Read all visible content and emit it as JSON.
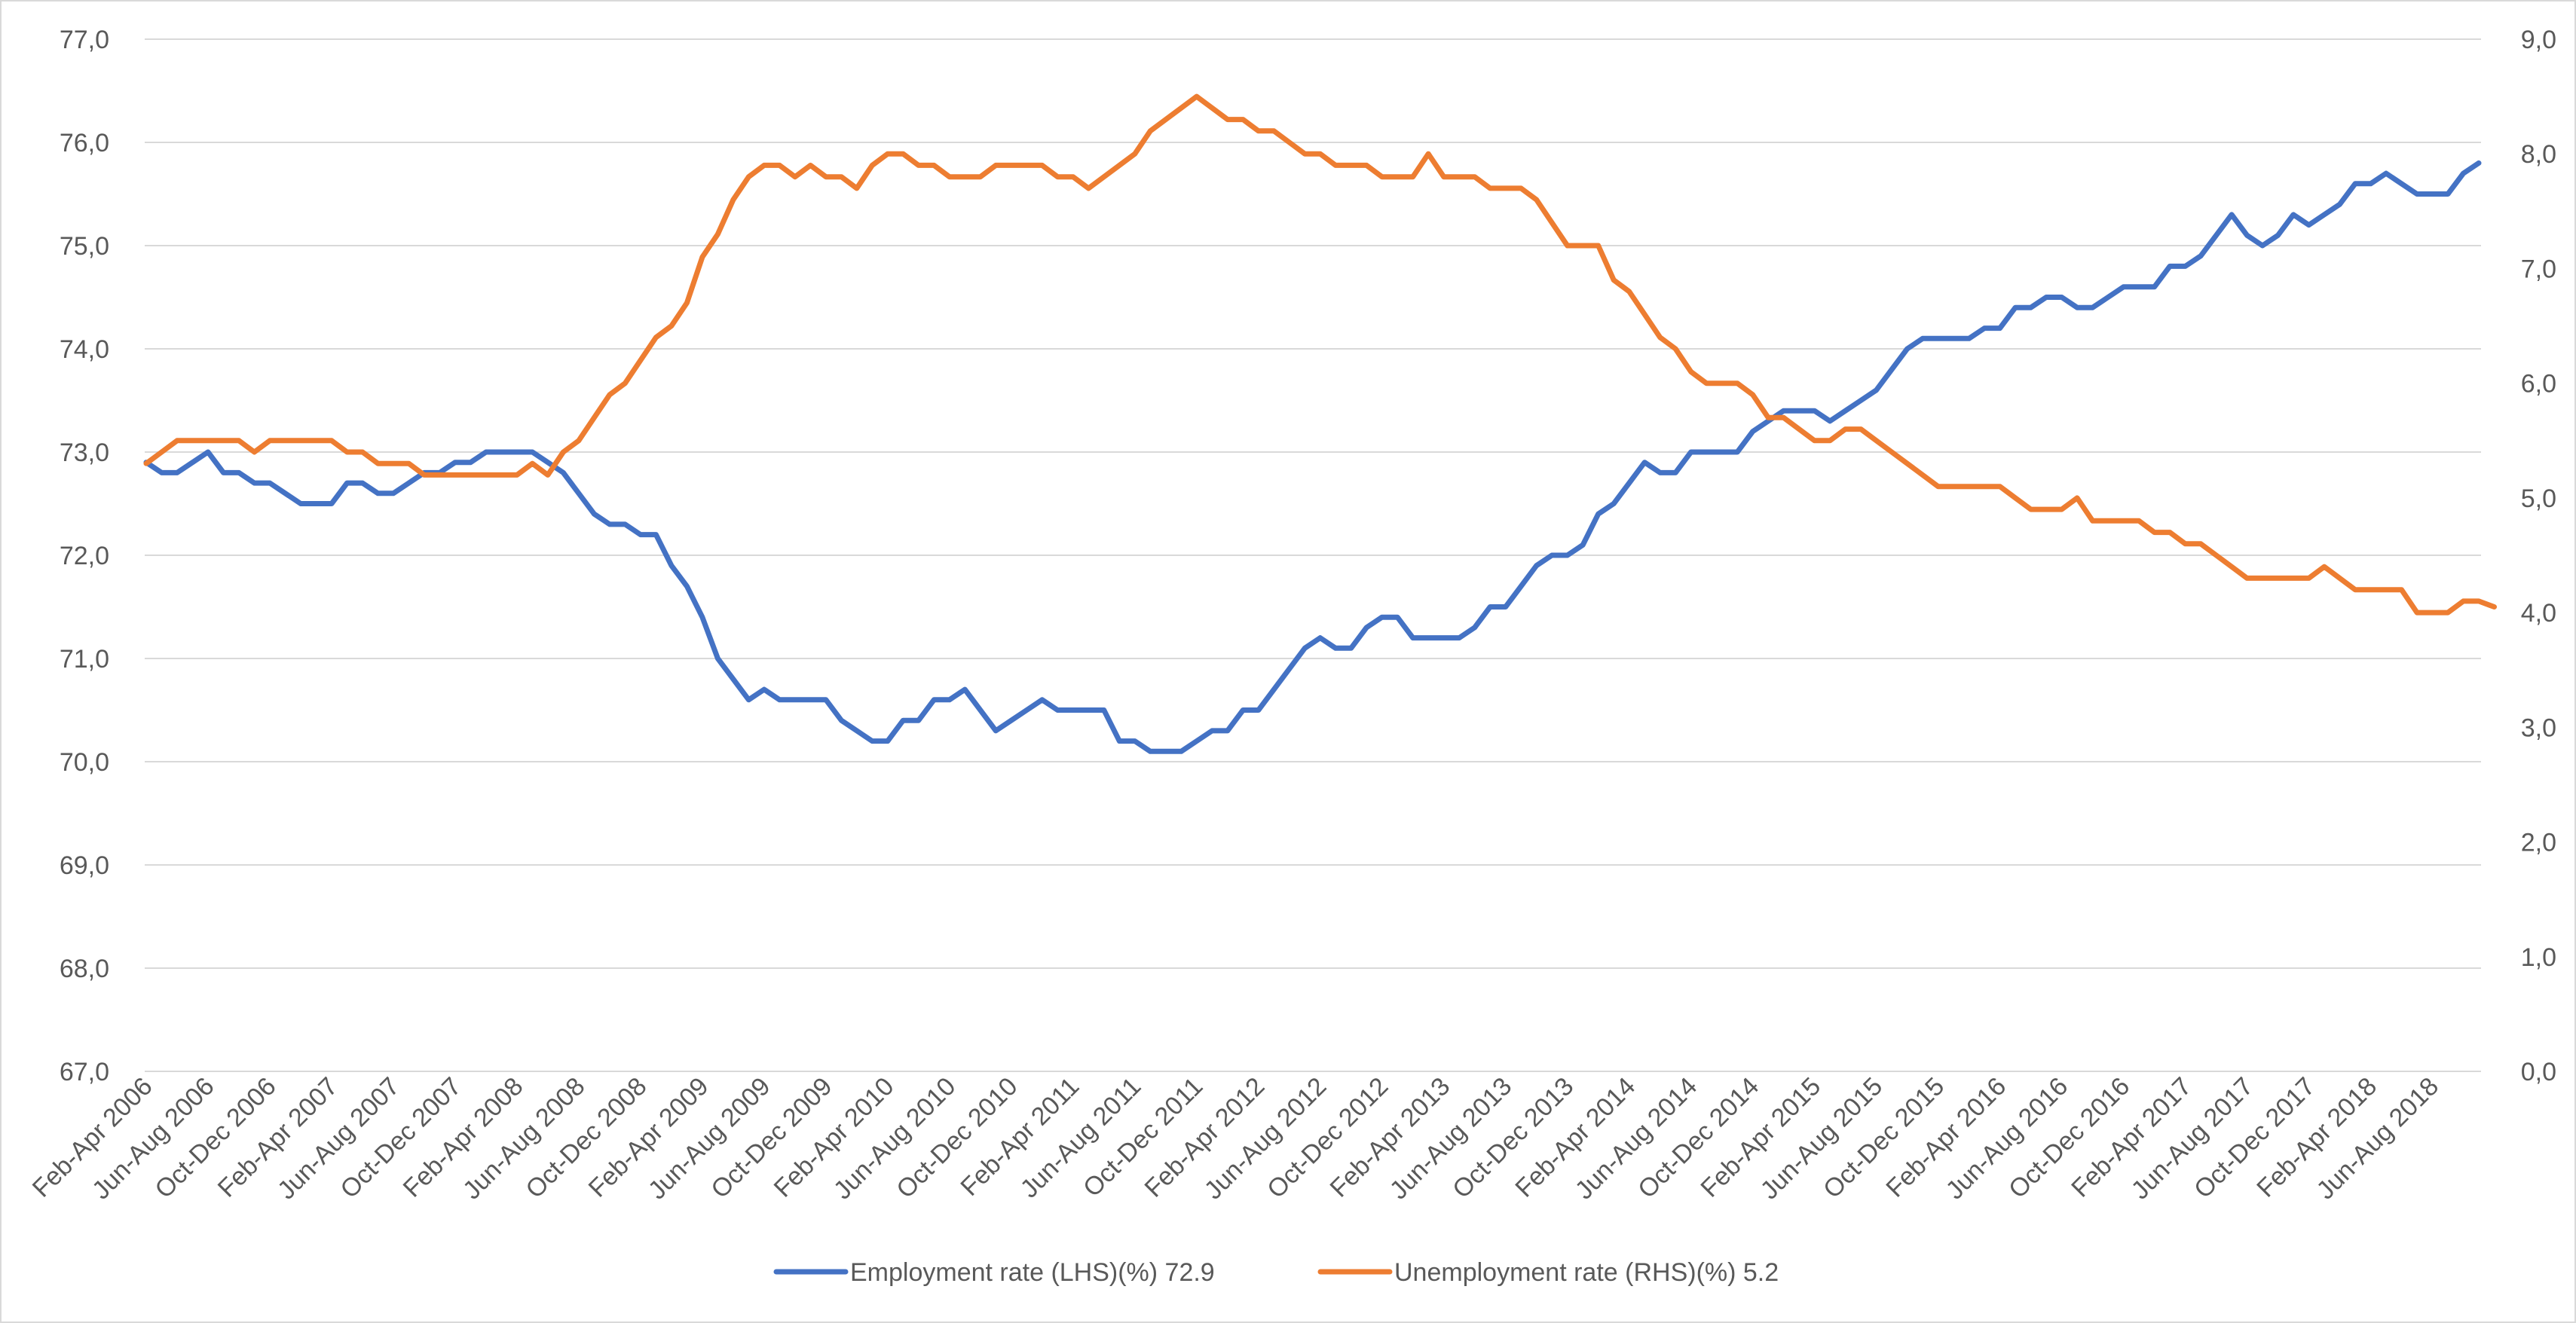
{
  "chart_data": {
    "type": "line",
    "title": "",
    "xlabel": "",
    "ylabel": "",
    "y_left": {
      "min": 67,
      "max": 77,
      "step": 1,
      "tick_labels": [
        "67,0",
        "68,0",
        "69,0",
        "70,0",
        "71,0",
        "72,0",
        "73,0",
        "74,0",
        "75,0",
        "76,0",
        "77,0"
      ]
    },
    "y_right": {
      "min": 0,
      "max": 9,
      "step": 1,
      "tick_labels": [
        "0,0",
        "1,0",
        "2,0",
        "3,0",
        "4,0",
        "5,0",
        "6,0",
        "7,0",
        "8,0",
        "9,0"
      ]
    },
    "x_tick_labels": [
      "Feb-Apr 2006",
      "Jun-Aug 2006",
      "Oct-Dec 2006",
      "Feb-Apr 2007",
      "Jun-Aug 2007",
      "Oct-Dec 2007",
      "Feb-Apr 2008",
      "Jun-Aug 2008",
      "Oct-Dec 2008",
      "Feb-Apr 2009",
      "Jun-Aug 2009",
      "Oct-Dec 2009",
      "Feb-Apr 2010",
      "Jun-Aug 2010",
      "Oct-Dec 2010",
      "Feb-Apr 2011",
      "Jun-Aug 2011",
      "Oct-Dec 2011",
      "Feb-Apr 2012",
      "Jun-Aug 2012",
      "Oct-Dec 2012",
      "Feb-Apr 2013",
      "Jun-Aug 2013",
      "Oct-Dec 2013",
      "Feb-Apr 2014",
      "Jun-Aug 2014",
      "Oct-Dec 2014",
      "Feb-Apr 2015",
      "Jun-Aug 2015",
      "Oct-Dec 2015",
      "Feb-Apr 2016",
      "Jun-Aug 2016",
      "Oct-Dec 2016",
      "Feb-Apr 2017",
      "Jun-Aug 2017",
      "Oct-Dec 2017",
      "Feb-Apr 2018",
      "Jun-Aug 2018"
    ],
    "tick_every": 4,
    "grid": true,
    "legend_position": "bottom",
    "series": [
      {
        "name": "Employment rate (LHS)(%) 72.9",
        "axis": "left",
        "color": "#4472c4",
        "values": [
          72.9,
          72.8,
          72.8,
          72.9,
          73.0,
          72.8,
          72.8,
          72.7,
          72.7,
          72.6,
          72.5,
          72.5,
          72.5,
          72.7,
          72.7,
          72.6,
          72.6,
          72.7,
          72.8,
          72.8,
          72.9,
          72.9,
          73.0,
          73.0,
          73.0,
          73.0,
          72.9,
          72.8,
          72.6,
          72.4,
          72.3,
          72.3,
          72.2,
          72.2,
          71.9,
          71.7,
          71.4,
          71.0,
          70.8,
          70.6,
          70.7,
          70.6,
          70.6,
          70.6,
          70.6,
          70.4,
          70.3,
          70.2,
          70.2,
          70.4,
          70.4,
          70.6,
          70.6,
          70.7,
          70.5,
          70.3,
          70.4,
          70.5,
          70.6,
          70.5,
          70.5,
          70.5,
          70.5,
          70.2,
          70.2,
          70.1,
          70.1,
          70.1,
          70.2,
          70.3,
          70.3,
          70.5,
          70.5,
          70.7,
          70.9,
          71.1,
          71.2,
          71.1,
          71.1,
          71.3,
          71.4,
          71.4,
          71.2,
          71.2,
          71.2,
          71.2,
          71.3,
          71.5,
          71.5,
          71.7,
          71.9,
          72.0,
          72.0,
          72.1,
          72.4,
          72.5,
          72.7,
          72.9,
          72.8,
          72.8,
          73.0,
          73.0,
          73.0,
          73.0,
          73.2,
          73.3,
          73.4,
          73.4,
          73.4,
          73.3,
          73.4,
          73.5,
          73.6,
          73.8,
          74.0,
          74.1,
          74.1,
          74.1,
          74.1,
          74.2,
          74.2,
          74.4,
          74.4,
          74.5,
          74.5,
          74.4,
          74.4,
          74.5,
          74.6,
          74.6,
          74.6,
          74.8,
          74.8,
          74.9,
          75.1,
          75.3,
          75.1,
          75.0,
          75.1,
          75.3,
          75.2,
          75.3,
          75.4,
          75.6,
          75.6,
          75.7,
          75.6,
          75.5,
          75.5,
          75.5,
          75.7,
          75.8
        ]
      },
      {
        "name": "Unemployment rate (RHS)(%) 5.2",
        "axis": "right",
        "color": "#ed7d31",
        "values": [
          5.3,
          5.4,
          5.5,
          5.5,
          5.5,
          5.5,
          5.5,
          5.4,
          5.5,
          5.5,
          5.5,
          5.5,
          5.5,
          5.4,
          5.4,
          5.3,
          5.3,
          5.3,
          5.2,
          5.2,
          5.2,
          5.2,
          5.2,
          5.2,
          5.2,
          5.3,
          5.2,
          5.4,
          5.5,
          5.7,
          5.9,
          6.0,
          6.2,
          6.4,
          6.5,
          6.7,
          7.1,
          7.3,
          7.6,
          7.8,
          7.9,
          7.9,
          7.8,
          7.9,
          7.8,
          7.8,
          7.7,
          7.9,
          8.0,
          8.0,
          7.9,
          7.9,
          7.8,
          7.8,
          7.8,
          7.9,
          7.9,
          7.9,
          7.9,
          7.8,
          7.8,
          7.7,
          7.8,
          7.9,
          8.0,
          8.2,
          8.3,
          8.4,
          8.5,
          8.4,
          8.3,
          8.3,
          8.2,
          8.2,
          8.1,
          8.0,
          8.0,
          7.9,
          7.9,
          7.9,
          7.8,
          7.8,
          7.8,
          8.0,
          7.8,
          7.8,
          7.8,
          7.7,
          7.7,
          7.7,
          7.6,
          7.4,
          7.2,
          7.2,
          7.2,
          6.9,
          6.8,
          6.6,
          6.4,
          6.3,
          6.1,
          6.0,
          6.0,
          6.0,
          5.9,
          5.7,
          5.7,
          5.6,
          5.5,
          5.5,
          5.6,
          5.6,
          5.5,
          5.4,
          5.3,
          5.2,
          5.1,
          5.1,
          5.1,
          5.1,
          5.1,
          5.0,
          4.9,
          4.9,
          4.9,
          5.0,
          4.8,
          4.8,
          4.8,
          4.8,
          4.7,
          4.7,
          4.6,
          4.6,
          4.5,
          4.4,
          4.3,
          4.3,
          4.3,
          4.3,
          4.3,
          4.4,
          4.3,
          4.2,
          4.2,
          4.2,
          4.2,
          4.0,
          4.0,
          4.0,
          4.1,
          4.1,
          4.05
        ]
      }
    ]
  }
}
